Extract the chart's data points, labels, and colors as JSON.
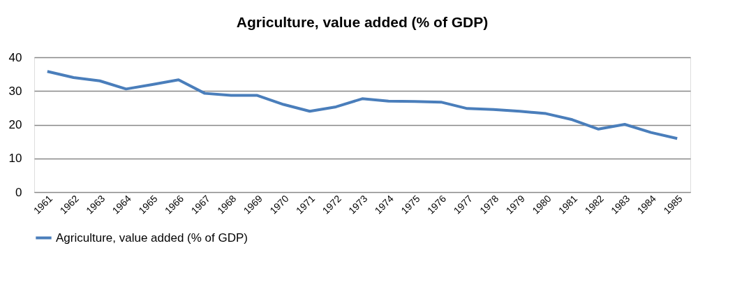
{
  "chart_data": {
    "type": "line",
    "title": "Agriculture, value added (% of GDP)",
    "categories": [
      "1961",
      "1962",
      "1963",
      "1964",
      "1965",
      "1966",
      "1967",
      "1968",
      "1969",
      "1970",
      "1971",
      "1972",
      "1973",
      "1974",
      "1975",
      "1976",
      "1977",
      "1978",
      "1979",
      "1980",
      "1981",
      "1982",
      "1983",
      "1984",
      "1985"
    ],
    "series": [
      {
        "name": "Agriculture, value added (% of GDP)",
        "color": "#4a7ebb",
        "values": [
          35.8,
          34,
          33,
          30.6,
          31.9,
          33.3,
          29.3,
          28.7,
          28.7,
          26,
          24,
          25.3,
          27.7,
          27,
          26.9,
          26.7,
          24.8,
          24.5,
          24,
          23.3,
          21.5,
          18.7,
          20.1,
          17.7,
          15.9
        ]
      }
    ],
    "ylim": [
      0,
      40
    ],
    "yticks": [
      0,
      10,
      20,
      30,
      40
    ],
    "grid": "y",
    "legend": "bottom",
    "marker": "none",
    "line_style": "solid"
  }
}
